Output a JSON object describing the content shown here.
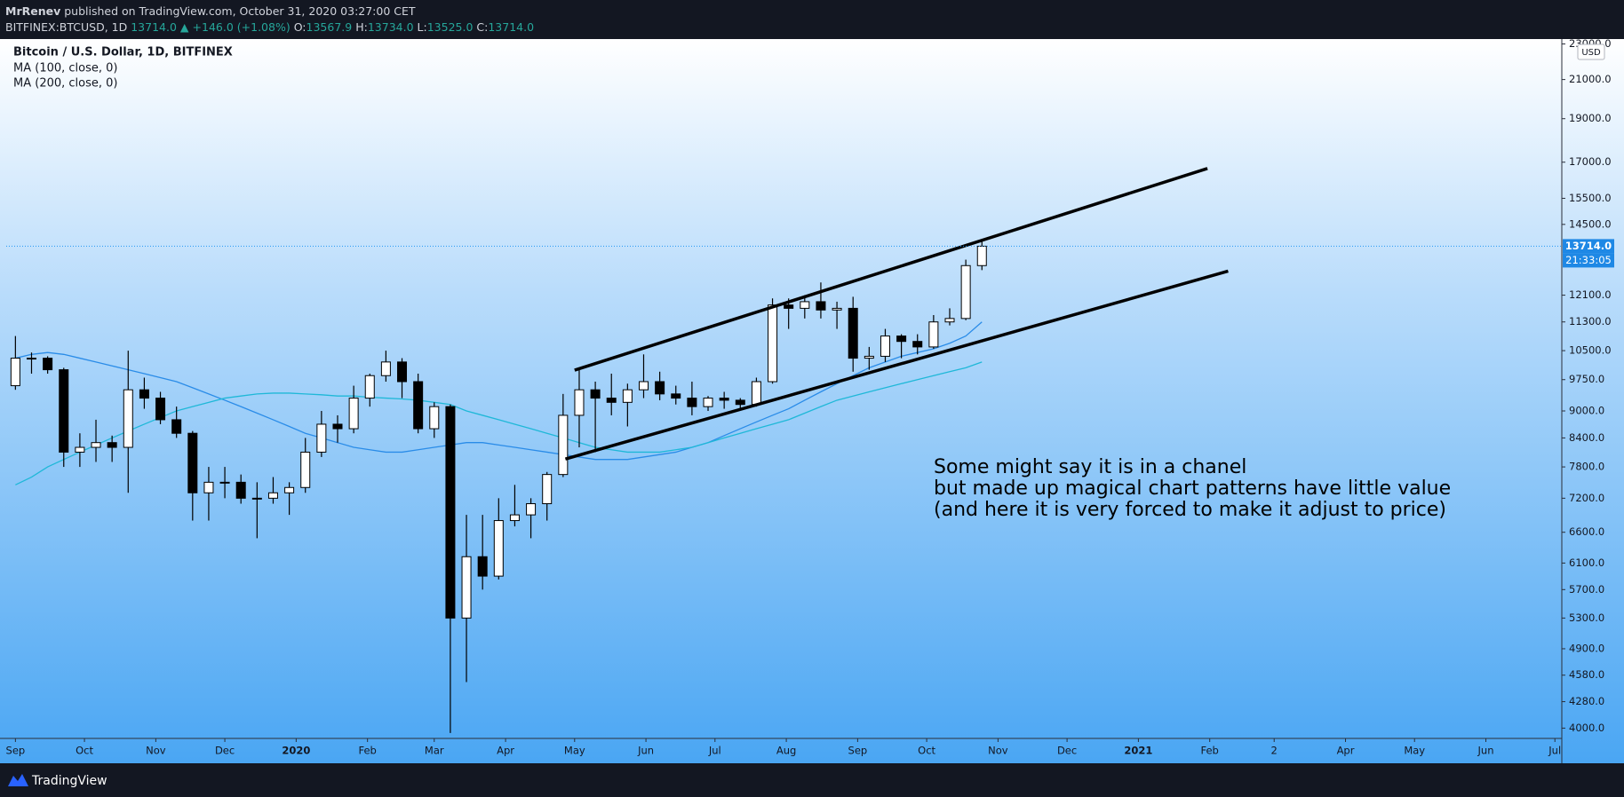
{
  "header": {
    "author": "MrRenev",
    "published": "published on TradingView.com, October 31, 2020 03:27:00 CET",
    "symbol": "BITFINEX:BTCUSD, 1D",
    "last": "13714.0",
    "arrow": "▲",
    "change": "+146.0 (+1.08%)",
    "ohlc": [
      {
        "label": "O:",
        "value": "13567.9"
      },
      {
        "label": "H:",
        "value": "13734.0"
      },
      {
        "label": "L:",
        "value": "13525.0"
      },
      {
        "label": "C:",
        "value": "13714.0"
      }
    ]
  },
  "footer": {
    "brand": "TradingView"
  },
  "chart_data": {
    "type": "candlestick",
    "title": "Bitcoin / U.S. Dollar, 1D, BITFINEX",
    "currency": "USD",
    "log_scale": true,
    "grid": false,
    "up_color": "#ffffff",
    "down_color": "#000000",
    "wick_color": "#000000",
    "x": [
      0,
      7,
      14,
      21,
      28,
      35,
      42,
      49,
      56,
      63,
      70,
      77,
      84,
      91,
      98,
      105,
      112,
      119,
      126,
      133,
      140,
      147,
      154,
      161,
      168,
      175,
      182,
      189,
      196,
      203,
      210,
      217,
      224,
      231,
      238,
      245,
      252,
      259,
      266,
      273,
      280,
      287,
      294,
      301,
      308,
      315,
      322,
      329,
      336,
      343,
      350,
      357,
      364,
      371,
      378,
      385,
      392,
      399,
      406,
      413,
      420
    ],
    "open": [
      9600,
      10300,
      10300,
      10000,
      8100,
      8200,
      8300,
      8200,
      9500,
      9300,
      8800,
      8500,
      7300,
      7500,
      7500,
      7200,
      7200,
      7300,
      7400,
      8100,
      8700,
      8600,
      9300,
      9850,
      10200,
      9700,
      8600,
      9100,
      5300,
      6200,
      5900,
      6800,
      6900,
      7100,
      7650,
      8900,
      9500,
      9300,
      9200,
      9500,
      9700,
      9400,
      9300,
      9100,
      9300,
      9250,
      9150,
      9700,
      11800,
      11700,
      11900,
      11650,
      11700,
      10300,
      10350,
      10900,
      10750,
      10600,
      11300,
      11400,
      13050
    ],
    "high": [
      10900,
      10450,
      10350,
      10050,
      8500,
      8800,
      8450,
      10500,
      9800,
      9450,
      9100,
      8550,
      7800,
      7800,
      7650,
      7500,
      7600,
      7500,
      8400,
      9000,
      8900,
      9600,
      9900,
      10500,
      10300,
      9900,
      9200,
      9150,
      6900,
      6900,
      7200,
      7450,
      7200,
      7700,
      9400,
      10000,
      9700,
      9900,
      9650,
      10400,
      9950,
      9600,
      9700,
      9350,
      9450,
      9300,
      9800,
      12000,
      12000,
      12100,
      12500,
      11900,
      12050,
      10600,
      11100,
      10950,
      10950,
      11500,
      11700,
      13250,
      13900
    ],
    "low": [
      9500,
      9900,
      9900,
      7800,
      7800,
      7900,
      7900,
      7300,
      9050,
      8700,
      8400,
      6800,
      6800,
      7200,
      7100,
      6500,
      7100,
      6900,
      7300,
      8000,
      8300,
      8500,
      9100,
      9700,
      9300,
      8500,
      8400,
      3950,
      4500,
      5700,
      5850,
      6700,
      6500,
      6800,
      7600,
      8200,
      8100,
      8900,
      8650,
      9300,
      9250,
      9150,
      8900,
      9000,
      9050,
      9050,
      9100,
      9650,
      11100,
      11400,
      11400,
      11100,
      9950,
      10000,
      10200,
      10300,
      10400,
      10550,
      11200,
      11350,
      12900
    ],
    "close": [
      10300,
      10300,
      10000,
      8100,
      8200,
      8300,
      8200,
      9500,
      9300,
      8800,
      8500,
      7300,
      7500,
      7500,
      7200,
      7200,
      7300,
      7400,
      8100,
      8700,
      8600,
      9300,
      9850,
      10200,
      9700,
      8600,
      9100,
      5300,
      6200,
      5900,
      6800,
      6900,
      7100,
      7650,
      8900,
      9500,
      9300,
      9200,
      9500,
      9700,
      9400,
      9300,
      9100,
      9300,
      9250,
      9150,
      9700,
      11800,
      11700,
      11900,
      11650,
      11700,
      10300,
      10350,
      10900,
      10750,
      10600,
      11300,
      11400,
      13050,
      13714
    ],
    "series": [
      {
        "name": "MA (100, close, 0)",
        "color": "#2a8ce8",
        "values": [
          10300,
          10400,
          10450,
          10400,
          10300,
          10200,
          10100,
          10000,
          9900,
          9800,
          9700,
          9550,
          9400,
          9250,
          9100,
          8950,
          8800,
          8650,
          8500,
          8400,
          8300,
          8200,
          8150,
          8100,
          8100,
          8150,
          8200,
          8250,
          8300,
          8300,
          8250,
          8200,
          8150,
          8100,
          8050,
          8000,
          7950,
          7950,
          7950,
          8000,
          8050,
          8100,
          8200,
          8300,
          8450,
          8600,
          8750,
          8900,
          9050,
          9250,
          9450,
          9650,
          9850,
          10050,
          10200,
          10350,
          10450,
          10550,
          10700,
          10900,
          11300
        ]
      },
      {
        "name": "MA (200, close, 0)",
        "color": "#1fb8d8",
        "values": [
          7450,
          7600,
          7800,
          7950,
          8100,
          8250,
          8400,
          8550,
          8700,
          8850,
          9000,
          9100,
          9200,
          9300,
          9350,
          9400,
          9420,
          9420,
          9400,
          9380,
          9350,
          9350,
          9320,
          9300,
          9280,
          9250,
          9200,
          9150,
          9000,
          8900,
          8800,
          8700,
          8600,
          8500,
          8400,
          8300,
          8200,
          8150,
          8100,
          8100,
          8100,
          8150,
          8200,
          8300,
          8400,
          8500,
          8600,
          8700,
          8800,
          8950,
          9100,
          9250,
          9350,
          9450,
          9550,
          9650,
          9750,
          9850,
          9950,
          10050,
          10200
        ]
      }
    ],
    "trendlines": [
      {
        "x": [
          243,
          518
        ],
        "y": [
          9990,
          16730
        ]
      },
      {
        "x": [
          239,
          527
        ],
        "y": [
          7960,
          12870
        ]
      }
    ],
    "last_price": {
      "value": 13714,
      "label": "13714.0"
    },
    "countdown": "21:33:05",
    "annotation": [
      "Some might say it is in a chanel",
      "but made up magical chart patterns have little value",
      "(and here it is very forced to make it adjust to price)"
    ],
    "xlim": [
      -4,
      672
    ],
    "xticks": [
      {
        "value": 0,
        "label": "Sep"
      },
      {
        "value": 30,
        "label": "Oct"
      },
      {
        "value": 61,
        "label": "Nov"
      },
      {
        "value": 91,
        "label": "Dec"
      },
      {
        "value": 122,
        "label": "2020"
      },
      {
        "value": 153,
        "label": "Feb"
      },
      {
        "value": 182,
        "label": "Mar"
      },
      {
        "value": 213,
        "label": "Apr"
      },
      {
        "value": 243,
        "label": "May"
      },
      {
        "value": 274,
        "label": "Jun"
      },
      {
        "value": 304,
        "label": "Jul"
      },
      {
        "value": 335,
        "label": "Aug"
      },
      {
        "value": 366,
        "label": "Sep"
      },
      {
        "value": 396,
        "label": "Oct"
      },
      {
        "value": 427,
        "label": "Nov"
      },
      {
        "value": 457,
        "label": "Dec"
      },
      {
        "value": 488,
        "label": "2021"
      },
      {
        "value": 519,
        "label": "Feb"
      },
      {
        "value": 547,
        "label": "2"
      },
      {
        "value": 578,
        "label": "Apr"
      },
      {
        "value": 608,
        "label": "May"
      },
      {
        "value": 639,
        "label": "Jun"
      },
      {
        "value": 669,
        "label": "Jul"
      }
    ],
    "ylim": [
      3896,
      23290
    ],
    "yticks": [
      {
        "value": 4000,
        "label": "4000.0"
      },
      {
        "value": 4280,
        "label": "4280.0"
      },
      {
        "value": 4580,
        "label": "4580.0"
      },
      {
        "value": 4900,
        "label": "4900.0"
      },
      {
        "value": 5300,
        "label": "5300.0"
      },
      {
        "value": 5700,
        "label": "5700.0"
      },
      {
        "value": 6100,
        "label": "6100.0"
      },
      {
        "value": 6600,
        "label": "6600.0"
      },
      {
        "value": 7200,
        "label": "7200.0"
      },
      {
        "value": 7800,
        "label": "7800.0"
      },
      {
        "value": 8400,
        "label": "8400.0"
      },
      {
        "value": 9000,
        "label": "9000.0"
      },
      {
        "value": 9750,
        "label": "9750.0"
      },
      {
        "value": 10500,
        "label": "10500.0"
      },
      {
        "value": 11300,
        "label": "11300.0"
      },
      {
        "value": 12100,
        "label": "12100.0"
      },
      {
        "value": 14500,
        "label": "14500.0"
      },
      {
        "value": 15500,
        "label": "15500.0"
      },
      {
        "value": 17000,
        "label": "17000.0"
      },
      {
        "value": 19000,
        "label": "19000.0"
      },
      {
        "value": 21000,
        "label": "21000.0"
      },
      {
        "value": 23000,
        "label": "23000.0"
      }
    ]
  }
}
